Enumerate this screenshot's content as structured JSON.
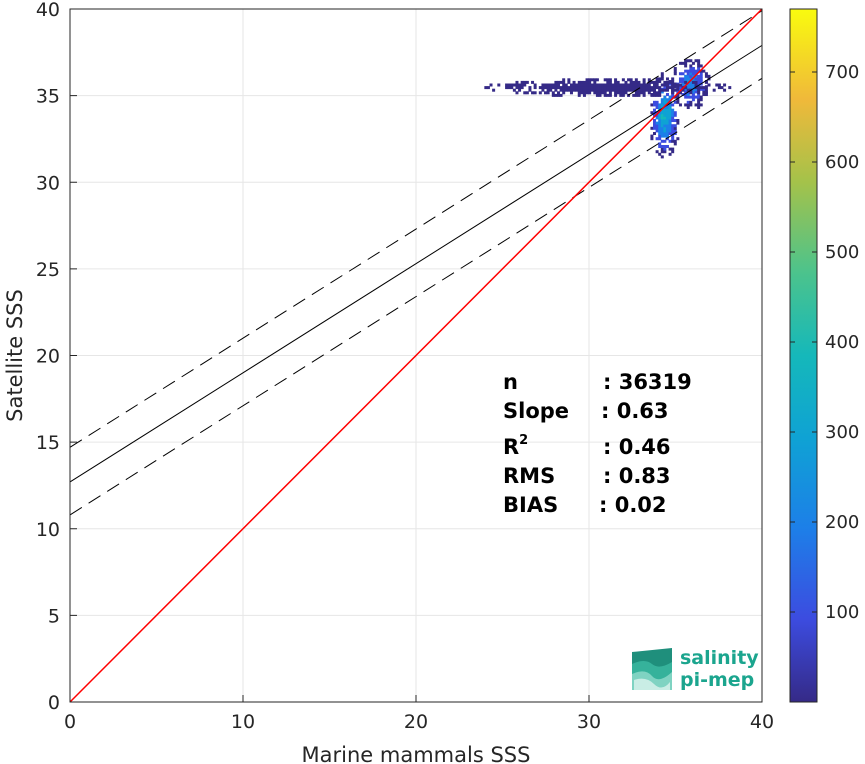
{
  "chart_data": {
    "type": "heatmap",
    "title": "",
    "xlabel": "Marine mammals SSS",
    "ylabel": "Satellite SSS",
    "xlim": [
      0,
      40
    ],
    "ylim": [
      0,
      40
    ],
    "xticks": [
      "0",
      "10",
      "20",
      "30",
      "40"
    ],
    "yticks": [
      "0",
      "5",
      "10",
      "15",
      "20",
      "25",
      "30",
      "35",
      "40"
    ],
    "grid": true,
    "colorbar": {
      "range": [
        0,
        770
      ],
      "ticks": [
        "100",
        "200",
        "300",
        "400",
        "500",
        "600",
        "700"
      ],
      "colormap": "parula",
      "placement": "right"
    },
    "identity_line": {
      "x": [
        0,
        40
      ],
      "y": [
        0,
        40
      ],
      "color": "#ff0000"
    },
    "fit_line": {
      "intercept": 12.7,
      "slope": 0.63,
      "color": "#000000"
    },
    "fit_bounds": [
      {
        "intercept": 14.7,
        "slope": 0.63,
        "style": "dashed"
      },
      {
        "intercept": 10.8,
        "slope": 0.63,
        "style": "dashed"
      }
    ],
    "density_clusters": [
      {
        "x_center": 34.3,
        "y_center": 33.8,
        "x_spread": 0.35,
        "y_spread": 1.0,
        "peak_count": 420
      },
      {
        "x_center": 35.8,
        "y_center": 35.6,
        "x_spread": 0.45,
        "y_spread": 0.6,
        "peak_count": 300
      },
      {
        "x_center": 31.0,
        "y_center": 35.4,
        "x_spread": 2.8,
        "y_spread": 0.2,
        "peak_count": 40
      }
    ],
    "stats": [
      {
        "label": "n",
        "value": ": 36319"
      },
      {
        "label": "Slope",
        "value": ": 0.63"
      },
      {
        "label": "R",
        "sup": "2",
        "value": ": 0.46"
      },
      {
        "label": "RMS",
        "value": ": 0.83"
      },
      {
        "label": "BIAS",
        "value": ": 0.02"
      }
    ]
  },
  "logo": {
    "line1": "salinity",
    "line2": "pi-mep"
  },
  "colors": {
    "identity": "#ff0000",
    "fit": "#000000",
    "logo": "#1ba58e"
  }
}
